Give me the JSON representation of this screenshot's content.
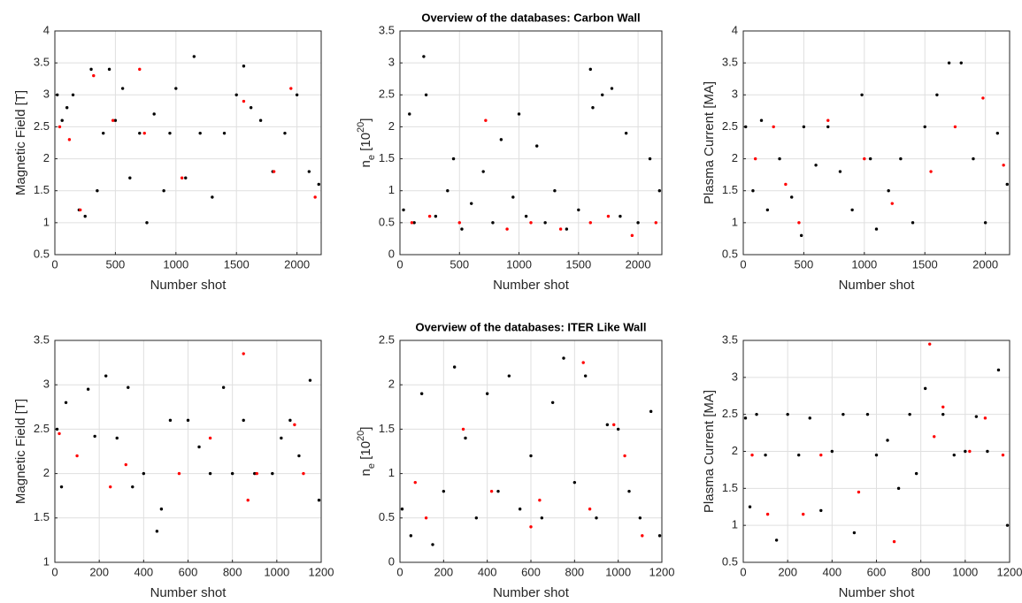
{
  "chart_data": [
    {
      "type": "scatter",
      "xlabel": "Number shot",
      "ylabel": [
        {
          "text": "Magnetic Field [T]"
        }
      ],
      "xlim": [
        0,
        2200
      ],
      "xticks": [
        0,
        500,
        1000,
        1500,
        2000
      ],
      "ylim": [
        0.5,
        4
      ],
      "yticks": [
        0.5,
        1,
        1.5,
        2,
        2.5,
        3,
        3.5,
        4
      ],
      "grid": true,
      "series": [
        {
          "color": "#000000",
          "x": [
            20,
            60,
            100,
            150,
            200,
            250,
            300,
            350,
            400,
            450,
            500,
            560,
            620,
            700,
            760,
            820,
            900,
            950,
            1000,
            1080,
            1150,
            1200,
            1300,
            1400,
            1500,
            1560,
            1620,
            1700,
            1800,
            1900,
            2000,
            2100,
            2180
          ],
          "values": [
            3.0,
            2.6,
            2.8,
            3.0,
            1.2,
            1.1,
            3.4,
            1.5,
            2.4,
            3.4,
            2.6,
            3.1,
            1.7,
            2.4,
            1.0,
            2.7,
            1.5,
            2.4,
            3.1,
            1.7,
            3.6,
            2.4,
            1.4,
            2.4,
            3.0,
            3.45,
            2.8,
            2.6,
            1.8,
            2.4,
            3.0,
            1.8,
            1.6
          ]
        },
        {
          "color": "#ff0000",
          "x": [
            40,
            120,
            210,
            320,
            480,
            700,
            740,
            1050,
            1560,
            1810,
            1950,
            2150
          ],
          "values": [
            2.5,
            2.3,
            1.2,
            3.3,
            2.6,
            3.4,
            2.4,
            1.7,
            2.9,
            1.8,
            3.1,
            1.4
          ]
        }
      ]
    },
    {
      "type": "scatter",
      "title": "Overview of the databases: Carbon Wall",
      "xlabel": "Number shot",
      "ylabel": [
        {
          "text": "n"
        },
        {
          "text": "e",
          "shift": "sub"
        },
        {
          "text": " [10"
        },
        {
          "text": "20",
          "shift": "super"
        },
        {
          "text": "]"
        }
      ],
      "xlim": [
        0,
        2200
      ],
      "xticks": [
        0,
        500,
        1000,
        1500,
        2000
      ],
      "ylim": [
        0,
        3.5
      ],
      "yticks": [
        0,
        0.5,
        1,
        1.5,
        2,
        2.5,
        3,
        3.5
      ],
      "grid": true,
      "series": [
        {
          "color": "#000000",
          "x": [
            30,
            80,
            120,
            200,
            220,
            300,
            400,
            450,
            520,
            600,
            700,
            780,
            850,
            950,
            1000,
            1060,
            1150,
            1220,
            1300,
            1400,
            1500,
            1600,
            1620,
            1700,
            1780,
            1850,
            1900,
            2000,
            2100,
            2180
          ],
          "values": [
            0.7,
            2.2,
            0.5,
            3.1,
            2.5,
            0.6,
            1.0,
            1.5,
            0.4,
            0.8,
            1.3,
            0.5,
            1.8,
            0.9,
            2.2,
            0.6,
            1.7,
            0.5,
            1.0,
            0.4,
            0.7,
            2.9,
            2.3,
            2.5,
            2.6,
            0.6,
            1.9,
            0.5,
            1.5,
            1.0
          ]
        },
        {
          "color": "#ff0000",
          "x": [
            100,
            250,
            500,
            720,
            900,
            1100,
            1350,
            1600,
            1750,
            1950,
            2150
          ],
          "values": [
            0.5,
            0.6,
            0.5,
            2.1,
            0.4,
            0.5,
            0.4,
            0.5,
            0.6,
            0.3,
            0.5
          ]
        }
      ]
    },
    {
      "type": "scatter",
      "xlabel": "Number shot",
      "ylabel": [
        {
          "text": "Plasma Current [MA]"
        }
      ],
      "xlim": [
        0,
        2200
      ],
      "xticks": [
        0,
        500,
        1000,
        1500,
        2000
      ],
      "ylim": [
        0.5,
        4
      ],
      "yticks": [
        0.5,
        1,
        1.5,
        2,
        2.5,
        3,
        3.5,
        4
      ],
      "grid": true,
      "series": [
        {
          "color": "#000000",
          "x": [
            20,
            80,
            150,
            200,
            300,
            400,
            480,
            500,
            600,
            700,
            800,
            900,
            980,
            1050,
            1100,
            1200,
            1300,
            1400,
            1500,
            1600,
            1700,
            1800,
            1900,
            2000,
            2100,
            2180
          ],
          "values": [
            2.5,
            1.5,
            2.6,
            1.2,
            2.0,
            1.4,
            0.8,
            2.5,
            1.9,
            2.5,
            1.8,
            1.2,
            3.0,
            2.0,
            0.9,
            1.5,
            2.0,
            1.0,
            2.5,
            3.0,
            3.5,
            3.5,
            2.0,
            1.0,
            2.4,
            1.6
          ]
        },
        {
          "color": "#ff0000",
          "x": [
            100,
            250,
            350,
            460,
            700,
            1000,
            1230,
            1550,
            1750,
            1980,
            2150
          ],
          "values": [
            2.0,
            2.5,
            1.6,
            1.0,
            2.6,
            2.0,
            1.3,
            1.8,
            2.5,
            2.95,
            1.9
          ]
        }
      ]
    },
    {
      "type": "scatter",
      "xlabel": "Number shot",
      "ylabel": [
        {
          "text": "Magnetic Field [T]"
        }
      ],
      "xlim": [
        0,
        1200
      ],
      "xticks": [
        0,
        200,
        400,
        600,
        800,
        1000,
        1200
      ],
      "ylim": [
        1,
        3.5
      ],
      "yticks": [
        1,
        1.5,
        2,
        2.5,
        3,
        3.5
      ],
      "grid": true,
      "series": [
        {
          "color": "#000000",
          "x": [
            10,
            30,
            50,
            150,
            180,
            230,
            280,
            330,
            350,
            400,
            460,
            480,
            520,
            600,
            650,
            700,
            760,
            800,
            850,
            900,
            980,
            1020,
            1060,
            1100,
            1150,
            1190
          ],
          "values": [
            2.5,
            1.85,
            2.8,
            2.95,
            2.42,
            3.1,
            2.4,
            2.97,
            1.85,
            2.0,
            1.35,
            1.6,
            2.6,
            2.6,
            2.3,
            2.0,
            2.97,
            2.0,
            2.6,
            2.0,
            2.0,
            2.4,
            2.6,
            2.2,
            3.05,
            1.7
          ]
        },
        {
          "color": "#ff0000",
          "x": [
            20,
            100,
            250,
            320,
            560,
            700,
            850,
            870,
            910,
            1080,
            1120
          ],
          "values": [
            2.45,
            2.2,
            1.85,
            2.1,
            2.0,
            2.4,
            3.35,
            1.7,
            2.0,
            2.55,
            2.0
          ]
        }
      ]
    },
    {
      "type": "scatter",
      "title": "Overview of the databases: ITER Like Wall",
      "xlabel": "Number shot",
      "ylabel": [
        {
          "text": "n"
        },
        {
          "text": "e",
          "shift": "sub"
        },
        {
          "text": " [10"
        },
        {
          "text": "20",
          "shift": "super"
        },
        {
          "text": "]"
        }
      ],
      "xlim": [
        0,
        1200
      ],
      "xticks": [
        0,
        200,
        400,
        600,
        800,
        1000,
        1200
      ],
      "ylim": [
        0,
        2.5
      ],
      "yticks": [
        0,
        0.5,
        1,
        1.5,
        2,
        2.5
      ],
      "grid": true,
      "series": [
        {
          "color": "#000000",
          "x": [
            10,
            50,
            100,
            150,
            200,
            250,
            300,
            350,
            400,
            450,
            500,
            550,
            600,
            650,
            700,
            750,
            800,
            850,
            900,
            950,
            1000,
            1050,
            1100,
            1150,
            1190
          ],
          "values": [
            0.6,
            0.3,
            1.9,
            0.2,
            0.8,
            2.2,
            1.4,
            0.5,
            1.9,
            0.8,
            2.1,
            0.6,
            1.2,
            0.5,
            1.8,
            2.3,
            0.9,
            2.1,
            0.5,
            1.55,
            1.5,
            0.8,
            0.5,
            1.7,
            0.3
          ]
        },
        {
          "color": "#ff0000",
          "x": [
            70,
            120,
            290,
            420,
            600,
            640,
            840,
            870,
            980,
            1030,
            1110
          ],
          "values": [
            0.9,
            0.5,
            1.5,
            0.8,
            0.4,
            0.7,
            2.25,
            0.6,
            1.55,
            1.2,
            0.3
          ]
        }
      ]
    },
    {
      "type": "scatter",
      "xlabel": "Number shot",
      "ylabel": [
        {
          "text": "Plasma Current [MA]"
        }
      ],
      "xlim": [
        0,
        1200
      ],
      "xticks": [
        0,
        200,
        400,
        600,
        800,
        1000,
        1200
      ],
      "ylim": [
        0.5,
        3.5
      ],
      "yticks": [
        0.5,
        1,
        1.5,
        2,
        2.5,
        3,
        3.5
      ],
      "grid": true,
      "series": [
        {
          "color": "#000000",
          "x": [
            10,
            30,
            60,
            100,
            150,
            200,
            250,
            300,
            350,
            400,
            450,
            500,
            560,
            600,
            650,
            700,
            750,
            780,
            820,
            900,
            950,
            1000,
            1050,
            1100,
            1150,
            1190
          ],
          "values": [
            2.45,
            1.25,
            2.5,
            1.95,
            0.8,
            2.5,
            1.95,
            2.45,
            1.2,
            2.0,
            2.5,
            0.9,
            2.5,
            1.95,
            2.15,
            1.5,
            2.5,
            1.7,
            2.85,
            2.5,
            1.95,
            2.0,
            2.47,
            2.0,
            3.1,
            1.0
          ]
        },
        {
          "color": "#ff0000",
          "x": [
            40,
            110,
            270,
            350,
            520,
            680,
            840,
            860,
            900,
            1020,
            1090,
            1170
          ],
          "values": [
            1.95,
            1.15,
            1.15,
            1.95,
            1.45,
            0.78,
            3.45,
            2.2,
            2.6,
            2.0,
            2.45,
            1.95
          ]
        }
      ]
    }
  ]
}
